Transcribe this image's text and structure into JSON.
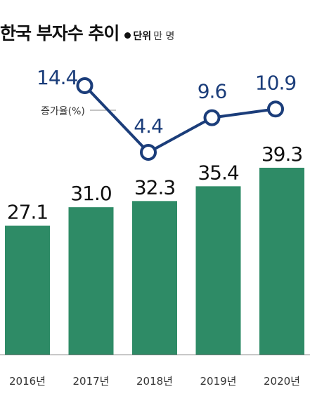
{
  "title": "한국 부자수 추이",
  "unit": {
    "label": "단위",
    "value": "만 명"
  },
  "chart_data": {
    "type": "bar",
    "categories": [
      "2016년",
      "2017년",
      "2018년",
      "2019년",
      "2020년"
    ],
    "series": [
      {
        "values": [
          27.1,
          31.0,
          32.3,
          35.4,
          39.3
        ],
        "labels": [
          "27.1",
          "31.0",
          "32.3",
          "35.4",
          "39.3"
        ]
      },
      {
        "name": "증가율(%)",
        "type": "line",
        "x": [
          "2017년",
          "2018년",
          "2019년",
          "2020년"
        ],
        "values": [
          14.4,
          4.4,
          9.6,
          10.9
        ],
        "labels": [
          "14.4",
          "4.4",
          "9.6",
          "10.9"
        ]
      }
    ],
    "colors": {
      "bar": "#2e8b66",
      "line": "#1b3d7a",
      "baseline": "#7a7a7a"
    },
    "grid": false
  }
}
